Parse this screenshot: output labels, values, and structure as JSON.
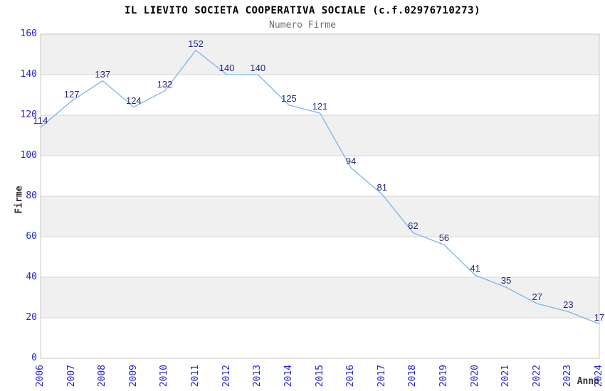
{
  "title": "IL LIEVITO SOCIETA COOPERATIVA SOCIALE (c.f.02976710273)",
  "subtitle": "Numero Firme",
  "chart_data": {
    "type": "line",
    "x": [
      "2006",
      "2007",
      "2008",
      "2009",
      "2010",
      "2011",
      "2012",
      "2013",
      "2014",
      "2015",
      "2016",
      "2017",
      "2018",
      "2019",
      "2020",
      "2021",
      "2022",
      "2023",
      "2024"
    ],
    "values": [
      114,
      127,
      137,
      124,
      132,
      152,
      140,
      140,
      125,
      121,
      94,
      81,
      62,
      56,
      41,
      35,
      27,
      23,
      17
    ],
    "title": "IL LIEVITO SOCIETA COOPERATIVA SOCIALE (c.f.02976710273)",
    "subtitle": "Numero Firme",
    "xlabel": "Anno",
    "ylabel": "Firme",
    "ylim": [
      0,
      160
    ],
    "ytick_interval": 20,
    "yticks": [
      0,
      20,
      40,
      60,
      80,
      100,
      120,
      140,
      160
    ],
    "grid": "horizontal bands, alternating gray/white from top",
    "legend_position": "none",
    "point_labels_shown": true,
    "colors": {
      "line": "#7fb2e8",
      "band_fill": "#f0f0f0",
      "gridline": "#d6d6d6",
      "plot_border": "#c9c9c9",
      "tick_label": "#2424cf",
      "value_label": "#24247d",
      "title": "#000000",
      "subtitle": "#6f6f6f",
      "axis_title": "#333333",
      "background": "#ffffff"
    }
  }
}
